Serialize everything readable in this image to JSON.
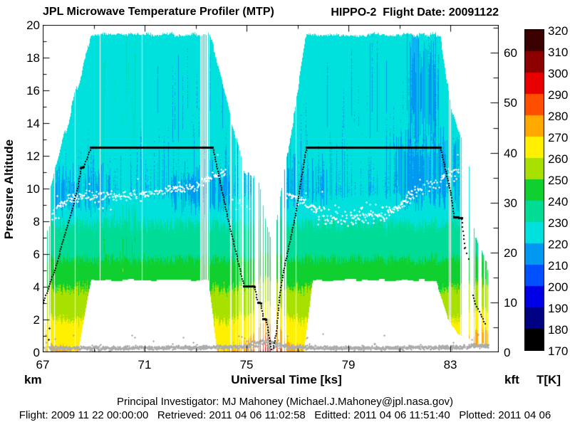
{
  "titles": {
    "left": "JPL Microwave Temperature Profiler (MTP)",
    "right": "HIPPO-2  Flight Date: 20091122"
  },
  "axes": {
    "x": {
      "label": "Universal Time [ks]",
      "range": [
        67,
        84.9
      ],
      "major_ticks": [
        67,
        71,
        75,
        79,
        83
      ],
      "minor_ticks": [
        69,
        73,
        77,
        81
      ]
    },
    "y_left": {
      "label": "Pressure Altitude",
      "unit": "km",
      "range": [
        0,
        20
      ],
      "major_ticks": [
        0,
        2,
        4,
        6,
        8,
        10,
        12,
        14,
        16,
        18,
        20
      ],
      "minor_ticks": [
        1,
        3,
        5,
        7,
        9,
        11,
        13,
        15,
        17,
        19
      ]
    },
    "y_right": {
      "unit": "kft",
      "major_ticks": [
        0,
        10,
        20,
        30,
        40,
        50,
        60
      ],
      "minor_ticks": [
        5,
        15,
        25,
        35,
        45,
        55,
        65
      ],
      "km_per_kft": 0.3048
    }
  },
  "colorbar": {
    "unit": "T[K]",
    "range": [
      170,
      320
    ],
    "tick_step": 10,
    "ticks": [
      170,
      180,
      190,
      200,
      210,
      220,
      230,
      240,
      250,
      260,
      270,
      280,
      290,
      300,
      310,
      320
    ]
  },
  "footer": {
    "line1": "Principal Investigator: MJ Mahoney (Michael.J.Mahoney@jpl.nasa.gov)",
    "line2": "Flight: 2009 11 22 00:00:00   Retrieved: 2011 04 06 11:02:58   Editted: 2011 04 06 11:51:40   Plotted: 2011 04 06"
  },
  "chart_data": {
    "type": "heatmap",
    "title": "JPL Microwave Temperature Profiler (MTP)",
    "xlabel": "Universal Time [ks]",
    "ylabel": "Pressure Altitude [km]",
    "xlim": [
      67,
      84.9
    ],
    "ylim": [
      0,
      20
    ],
    "colorbar_label": "T[K]",
    "colorbar_lim": [
      170,
      320
    ],
    "palette": {
      "t_min": 170,
      "t_step": 10,
      "colors": [
        "#000000",
        "#000082",
        "#0000E6",
        "#0050FF",
        "#0098F0",
        "#00E0DC",
        "#00DC96",
        "#0FD02F",
        "#A8E000",
        "#FFF000",
        "#FFA800",
        "#FF4E00",
        "#E80000",
        "#8C0000",
        "#3C0000"
      ]
    },
    "temperature_profile_K_by_km": [
      [
        0,
        270.5
      ],
      [
        0.5,
        267
      ],
      [
        1,
        264.5
      ],
      [
        2,
        259.5
      ],
      [
        3,
        254
      ],
      [
        4.4,
        247.5
      ],
      [
        5.5,
        241
      ],
      [
        6.5,
        235
      ],
      [
        8,
        229.5
      ],
      [
        9,
        223.5
      ],
      [
        9.8,
        220.8
      ],
      [
        11.5,
        222
      ],
      [
        14,
        223.5
      ],
      [
        19.6,
        225.5
      ]
    ],
    "surface_warm_anomaly_K": [
      [
        66.9,
        2
      ],
      [
        67.7,
        2
      ],
      [
        68.1,
        0
      ],
      [
        74.2,
        0
      ],
      [
        74.9,
        5
      ],
      [
        75.3,
        11
      ],
      [
        75.5,
        18
      ],
      [
        75.65,
        24
      ],
      [
        75.9,
        24
      ],
      [
        76.05,
        20
      ],
      [
        76.25,
        14
      ],
      [
        76.5,
        8
      ],
      [
        76.9,
        2
      ],
      [
        77.3,
        0
      ],
      [
        83.2,
        0
      ],
      [
        83.7,
        7
      ],
      [
        84.0,
        12
      ],
      [
        84.2,
        15
      ],
      [
        84.55,
        14
      ]
    ],
    "envelope_top_km": [
      [
        66.95,
        3.4
      ],
      [
        67.3,
        10.0
      ],
      [
        68.9,
        19.4
      ],
      [
        73.55,
        19.4
      ],
      [
        74.0,
        16.8
      ],
      [
        74.25,
        15.3
      ],
      [
        74.6,
        13.0
      ],
      [
        74.9,
        11.2
      ],
      [
        75.35,
        10.6
      ],
      [
        75.5,
        10.2
      ],
      [
        75.75,
        8.0
      ],
      [
        75.95,
        7.0
      ],
      [
        76.1,
        7.3
      ],
      [
        76.3,
        9.5
      ],
      [
        76.6,
        12.2
      ],
      [
        77.0,
        15.8
      ],
      [
        77.35,
        19.4
      ],
      [
        82.62,
        19.4
      ],
      [
        83.05,
        14.8
      ],
      [
        83.35,
        13.2
      ],
      [
        83.7,
        12.3
      ],
      [
        83.95,
        7.5
      ],
      [
        84.15,
        6.3
      ],
      [
        84.45,
        5.2
      ],
      [
        84.55,
        4.5
      ]
    ],
    "envelope_bottom_km": [
      [
        66.95,
        0
      ],
      [
        68.4,
        0
      ],
      [
        68.9,
        4.4
      ],
      [
        73.5,
        4.4
      ],
      [
        73.85,
        0
      ],
      [
        77.25,
        0
      ],
      [
        77.6,
        4.4
      ],
      [
        82.45,
        4.4
      ],
      [
        82.9,
        2.2
      ],
      [
        83.3,
        1.2
      ],
      [
        83.6,
        0.8
      ],
      [
        84.55,
        0.2
      ]
    ],
    "data_time_range": [
      66.98,
      84.55
    ],
    "data_gaps": [
      [
        66.98,
        67.3,
        0.85
      ],
      [
        73.15,
        73.38,
        0.4
      ],
      [
        74.35,
        75.3,
        0.4
      ],
      [
        75.3,
        75.47,
        0.95
      ],
      [
        75.47,
        75.95,
        0.55
      ],
      [
        75.95,
        76.12,
        0.9
      ],
      [
        76.12,
        76.55,
        0.5
      ],
      [
        76.55,
        77.0,
        0.25
      ],
      [
        82.9,
        83.08,
        0.3
      ],
      [
        83.4,
        83.9,
        0.75
      ],
      [
        83.9,
        84.55,
        0.5
      ]
    ],
    "base_gap_fraction": 0.002,
    "white_columns": [
      68.28,
      69.25,
      70.9,
      73.22,
      73.28,
      73.34,
      73.4,
      73.46,
      73.52,
      75.33,
      75.4,
      76.02,
      82.95,
      83.02,
      83.5,
      83.56,
      83.66,
      83.76
    ],
    "forced_columns": [
      {
        "t": 67.24,
        "z": [
          0.8,
          7.7
        ]
      },
      {
        "t": 67.07,
        "z": [
          0,
          1.8
        ]
      },
      {
        "t": 67.15,
        "z": [
          0,
          1.4
        ]
      },
      {
        "t": 67.19,
        "z": [
          0.3,
          2.1
        ]
      }
    ],
    "temperature_streak_anomalies": [
      {
        "t": [
          67.5,
          69.7
        ],
        "z": [
          7.8,
          11.6
        ],
        "bias": -5.5,
        "density": 0.6
      },
      {
        "t": [
          72.0,
          74.35
        ],
        "z": [
          7.8,
          11.8
        ],
        "bias": -5,
        "density": 0.55
      },
      {
        "t": [
          76.4,
          78.2
        ],
        "z": [
          8.0,
          12.2
        ],
        "bias": -4,
        "density": 0.45
      },
      {
        "t": [
          80.8,
          83.35
        ],
        "z": [
          8.5,
          13.8
        ],
        "bias": -5.5,
        "density": 0.6
      },
      {
        "t": [
          81.3,
          82.55
        ],
        "z": [
          12.5,
          19.5
        ],
        "bias": -6,
        "density": 0.85
      },
      {
        "t": [
          77.3,
          82.6
        ],
        "z": [
          12.5,
          19.5
        ],
        "bias": -3.2,
        "density": 0.25
      },
      {
        "t": [
          69.25,
          70.65
        ],
        "z": [
          4.5,
          19.5
        ],
        "bias": 5.5,
        "density": 0.3
      },
      {
        "t": [
          71.5,
          74.1
        ],
        "z": [
          12.5,
          19.5
        ],
        "bias": -3,
        "density": 0.18
      }
    ],
    "aircraft_track_km": {
      "solid_pieces": [
        [
          [
            68.9,
            12.5
          ],
          [
            73.68,
            12.5
          ]
        ],
        [
          [
            77.35,
            12.5
          ],
          [
            82.62,
            12.5
          ]
        ],
        [
          [
            74.9,
            4.03
          ],
          [
            75.31,
            4.0
          ]
        ],
        [
          [
            83.15,
            8.25
          ],
          [
            83.45,
            8.2
          ]
        ],
        [
          [
            75.45,
            3.03
          ],
          [
            75.56,
            3.0
          ]
        ],
        [
          [
            75.67,
            2.03
          ],
          [
            75.78,
            2.0
          ]
        ],
        [
          [
            68.5,
            11.25
          ],
          [
            68.62,
            11.32
          ]
        ]
      ],
      "dotted_pieces": [
        [
          [
            67.0,
            2.9
          ],
          [
            67.5,
            5.15
          ],
          [
            68.0,
            7.9
          ],
          [
            68.38,
            10.0
          ],
          [
            68.5,
            11.2
          ]
        ],
        [
          [
            68.62,
            11.35
          ],
          [
            68.9,
            12.5
          ]
        ],
        [
          [
            73.68,
            12.5
          ],
          [
            74.25,
            8.3
          ],
          [
            74.6,
            6.0
          ],
          [
            74.9,
            4.05
          ]
        ],
        [
          [
            75.31,
            4.0
          ],
          [
            75.45,
            3.05
          ]
        ],
        [
          [
            75.56,
            3.0
          ],
          [
            75.67,
            2.05
          ]
        ],
        [
          [
            75.78,
            2.0
          ],
          [
            75.86,
            1.2
          ],
          [
            75.97,
            0.18
          ]
        ],
        [
          [
            76.05,
            0.25
          ],
          [
            76.18,
            1.3
          ],
          [
            76.3,
            3.5
          ],
          [
            76.5,
            5.3
          ],
          [
            76.92,
            8.35
          ],
          [
            77.35,
            12.5
          ]
        ],
        [
          [
            82.62,
            12.5
          ],
          [
            83.04,
            9.6
          ],
          [
            83.15,
            8.3
          ]
        ],
        [
          [
            83.9,
            3.5
          ],
          [
            84.02,
            2.8
          ],
          [
            84.19,
            2.3
          ],
          [
            84.36,
            1.75
          ]
        ]
      ],
      "sparse_pieces": [
        [
          [
            83.45,
            8.15
          ],
          [
            83.58,
            6.4
          ]
        ],
        [
          [
            83.56,
            6.35
          ],
          [
            83.73,
            5.7
          ]
        ]
      ],
      "stray_markers": [
        [
          67.24,
          1.5
        ],
        [
          67.22,
          0.8
        ]
      ]
    },
    "tropopause_dots": {
      "color": "#FFFFFF",
      "control_points_seg1": [
        [
          67.35,
          8.3
        ],
        [
          67.6,
          8.9
        ],
        [
          68.0,
          9.35
        ],
        [
          68.6,
          9.5
        ],
        [
          69.4,
          9.55
        ],
        [
          70.2,
          9.6
        ],
        [
          71.0,
          9.65
        ],
        [
          71.8,
          9.85
        ],
        [
          72.4,
          10.05
        ],
        [
          73.0,
          10.15
        ],
        [
          73.5,
          10.7
        ],
        [
          74.2,
          11.05
        ]
      ],
      "control_points_seg1_descent": [
        [
          74.35,
          9.6
        ],
        [
          74.7,
          9.2
        ],
        [
          75.1,
          8.8
        ],
        [
          75.35,
          8.6
        ]
      ],
      "control_points_seg2": [
        [
          76.55,
          9.7
        ],
        [
          77.0,
          9.4
        ],
        [
          77.6,
          8.8
        ],
        [
          78.1,
          8.4
        ],
        [
          78.6,
          8.25
        ],
        [
          79.4,
          8.2
        ],
        [
          80.0,
          8.3
        ],
        [
          80.6,
          8.55
        ],
        [
          81.1,
          9.1
        ],
        [
          81.6,
          9.8
        ],
        [
          82.1,
          10.3
        ],
        [
          82.6,
          10.6
        ],
        [
          83.05,
          10.9
        ],
        [
          83.35,
          11.1
        ]
      ],
      "scatter_sd_km": 0.2,
      "high_scatter_regions": [
        [
          77.8,
          80.5,
          0.45
        ],
        [
          81.3,
          83.35,
          0.35
        ]
      ]
    },
    "surface_dots": {
      "color": "#ACACAC",
      "control_points": [
        [
          67.25,
          0.28
        ],
        [
          70,
          0.26
        ],
        [
          73,
          0.3
        ],
        [
          74.8,
          0.35
        ],
        [
          75.35,
          0.5
        ],
        [
          75.75,
          0.62
        ],
        [
          76.1,
          0.5
        ],
        [
          76.6,
          0.35
        ],
        [
          78,
          0.28
        ],
        [
          80,
          0.27
        ],
        [
          82,
          0.3
        ],
        [
          83.5,
          0.33
        ],
        [
          84.0,
          0.42
        ],
        [
          84.5,
          0.38
        ]
      ],
      "scatter_sd_km": 0.09,
      "high_scatter_regions": [
        [
          75.2,
          76.3,
          0.18
        ]
      ],
      "stray_markers": [
        [
          67.1,
          1.05
        ],
        [
          67.15,
          0.6
        ],
        [
          67.05,
          0.3
        ]
      ]
    }
  }
}
